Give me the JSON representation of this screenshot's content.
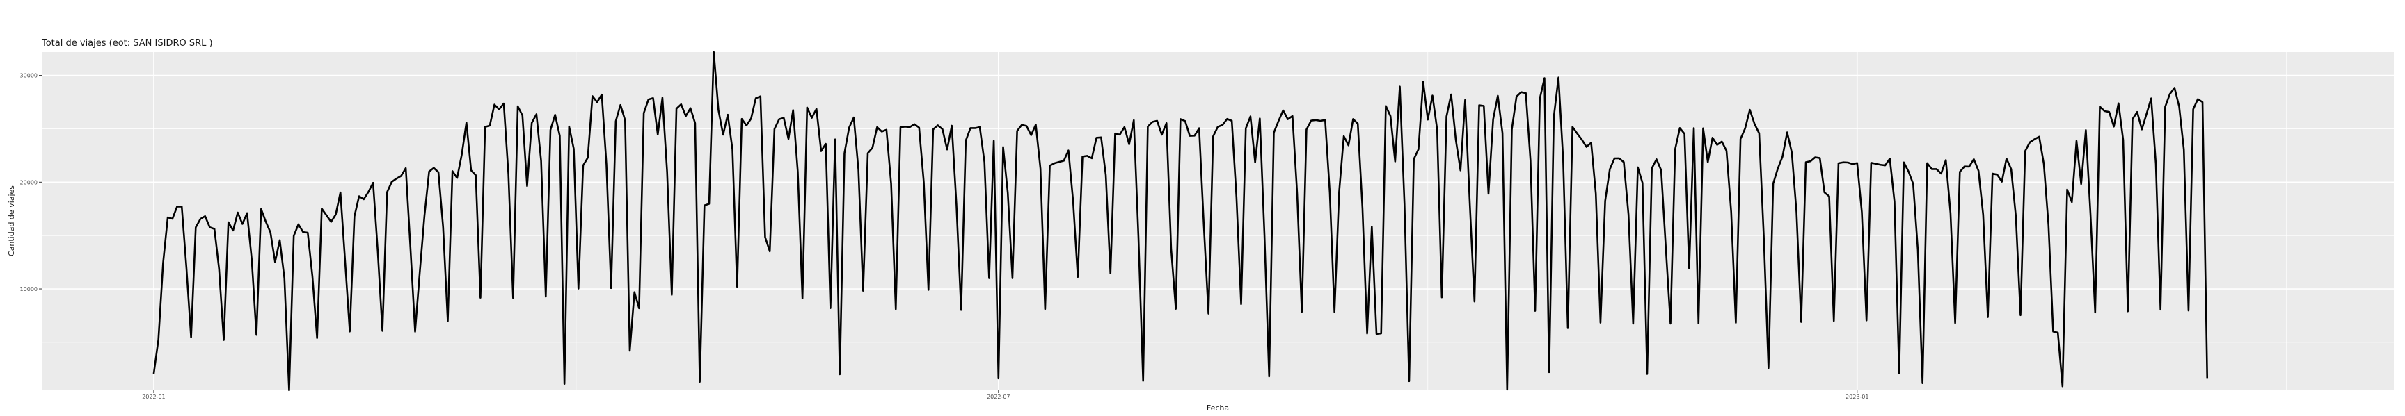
{
  "chart_data": {
    "type": "line",
    "title": "Total de viajes (eot: SAN ISIDRO SRL )",
    "xlabel": "Fecha",
    "ylabel": "Cantidad de viajes",
    "grid": true,
    "legend": "none",
    "x_tick_labels": [
      "2022-01",
      "2022-07",
      "2023-01"
    ],
    "y_tick_labels": [
      "10000",
      "20000",
      "30000"
    ],
    "x_ticks_day_index": [
      0,
      181,
      365
    ],
    "y_ticks": [
      10000,
      20000,
      30000
    ],
    "x_range_days": [
      -24,
      480
    ],
    "ylim": [
      505,
      32185
    ],
    "x_start_date": "2022-01-01",
    "series": [
      {
        "values": [
          2064,
          5255,
          12410,
          16701,
          16571,
          17714,
          17719,
          11990,
          5472,
          15771,
          16558,
          16817,
          15773,
          15622,
          11859,
          5218,
          16243,
          15473,
          17154,
          16088,
          17101,
          12740,
          5694,
          17483,
          16311,
          15307,
          12513,
          14567,
          10990,
          505,
          14970,
          16052,
          15323,
          15270,
          11172,
          5402,
          17525,
          16909,
          16286,
          16977,
          19036,
          12617,
          6012,
          16802,
          18685,
          18403,
          19089,
          19942,
          13519,
          6068,
          19066,
          20033,
          20332,
          20580,
          21317,
          13879,
          5996,
          11549,
          16831,
          20997,
          21337,
          20934,
          15809,
          6988,
          21032,
          20391,
          22591,
          25582,
          21112,
          20650,
          9174,
          25173,
          25301,
          27267,
          26819,
          27366,
          20734,
          9154,
          27108,
          26253,
          19637,
          25561,
          26363,
          22005,
          9282,
          24889,
          26311,
          24342,
          1106,
          25223,
          23115,
          10031,
          21565,
          22295,
          28062,
          27500,
          28205,
          21659,
          10081,
          25716,
          27229,
          25809,
          4211,
          9694,
          8191,
          26473,
          27744,
          27872,
          24465,
          27909,
          20964,
          9451,
          26889,
          27297,
          26190,
          26932,
          25524,
          1306,
          17826,
          17970,
          32185,
          26749,
          24449,
          26319,
          23055,
          10211,
          25925,
          25312,
          25966,
          27860,
          28043,
          14858,
          13524,
          24979,
          25896,
          26019,
          24055,
          26749,
          20963,
          9119,
          26995,
          26032,
          26862,
          22910,
          23592,
          8200,
          24012,
          2008,
          22717,
          25111,
          26062,
          21146,
          9826,
          22715,
          23222,
          25153,
          24738,
          24913,
          19871,
          8104,
          25150,
          25200,
          25162,
          25432,
          25110,
          19975,
          9907,
          24940,
          25326,
          24967,
          23062,
          25290,
          17872,
          8029,
          23890,
          25066,
          25064,
          25154,
          21879,
          11009,
          23879,
          1621,
          23290,
          18993,
          11005,
          24799,
          25370,
          25265,
          24409,
          25391,
          21262,
          8118,
          21549,
          21773,
          21899,
          22011,
          22970,
          18214,
          11121,
          22398,
          22469,
          22239,
          24154,
          24196,
          20662,
          11449,
          24561,
          24452,
          25162,
          23553,
          25807,
          14825,
          1397,
          25209,
          25648,
          25748,
          24449,
          25536,
          13766,
          8135,
          25915,
          25722,
          24342,
          24354,
          25053,
          15999,
          7690,
          24296,
          25186,
          25356,
          25924,
          25754,
          18587,
          8578,
          25038,
          26162,
          21858,
          25969,
          15012,
          1804,
          24633,
          25718,
          26727,
          25901,
          26191,
          18925,
          7851,
          24936,
          25765,
          25822,
          25745,
          25830,
          19010,
          7833,
          19087,
          24311,
          23452,
          25914,
          25480,
          17564,
          5824,
          15829,
          5781,
          5832,
          27140,
          26190,
          21940,
          28952,
          17972,
          1363,
          22160,
          23085,
          29419,
          25865,
          28112,
          24937,
          9211,
          26147,
          28214,
          23979,
          21104,
          27700,
          17953,
          8818,
          27206,
          27143,
          18921,
          25893,
          28096,
          24599,
          575,
          24939,
          28014,
          28431,
          28342,
          22019,
          7944,
          27828,
          29742,
          2205,
          26115,
          29800,
          22140,
          6329,
          25175,
          24567,
          23987,
          23305,
          23702,
          18929,
          6846,
          18232,
          21215,
          22233,
          22234,
          21878,
          16961,
          6747,
          21391,
          19937,
          2039,
          21297,
          22145,
          21130,
          13843,
          6750,
          23090,
          25072,
          24532,
          11926,
          25070,
          6770,
          25043,
          21879,
          24161,
          23502,
          23801,
          22939,
          17232,
          6836,
          24045,
          25048,
          26778,
          25467,
          24574,
          14807,
          2589,
          19860,
          21285,
          22393,
          24669,
          22768,
          17174,
          6907,
          21870,
          21967,
          22330,
          22263,
          19034,
          18681,
          7001,
          21776,
          21860,
          21841,
          21699,
          21791,
          17185,
          7055,
          21814,
          21727,
          21631,
          21575,
          22212,
          18161,
          2082,
          21855,
          21006,
          19848,
          13659,
          1177,
          21785,
          21228,
          21226,
          20808,
          22075,
          17102,
          6803,
          20969,
          21474,
          21458,
          22153,
          21074,
          16949,
          7361,
          20803,
          20708,
          20049,
          22206,
          21229,
          16831,
          7542,
          22914,
          23738,
          24022,
          24255,
          21713,
          15970,
          6009,
          5914,
          880,
          19306,
          18136,
          23868,
          19829,
          24879,
          16940,
          7795,
          27073,
          26664,
          26578,
          25207,
          27386,
          23945,
          7903,
          25913,
          26573,
          24944,
          26390,
          27848,
          21728,
          8066,
          27059,
          28262,
          28834,
          27074,
          23059,
          7979,
          26830,
          27781,
          27496,
          1584
        ]
      }
    ]
  }
}
